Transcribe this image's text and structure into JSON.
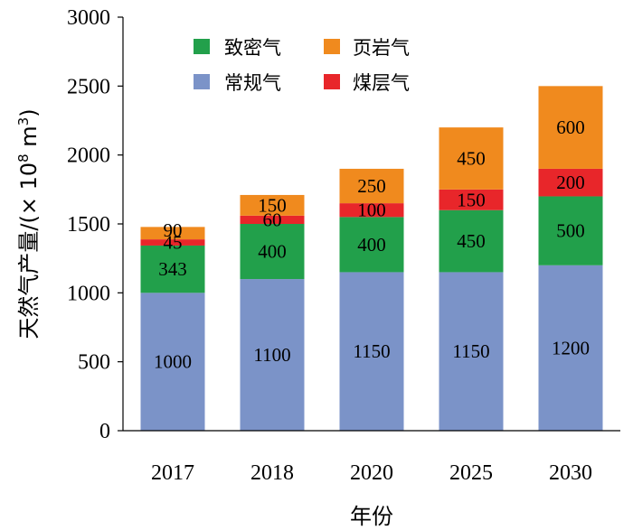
{
  "chart_data": {
    "type": "bar",
    "stacked": true,
    "title": "",
    "xlabel": "年份",
    "ylabel_main": "天然气产量/(× 10",
    "ylabel_sup": "8",
    "ylabel_unit": " m",
    "ylabel_unit_sup": "3",
    "ylabel_close": ")",
    "ylim": [
      0,
      3000
    ],
    "yticks": [
      "0",
      "500",
      "1000",
      "1500",
      "2000",
      "2500",
      "3000"
    ],
    "categories": [
      "2017",
      "2018",
      "2020",
      "2025",
      "2030"
    ],
    "series": [
      {
        "name": "常规气",
        "color": "#7b93c8",
        "values": [
          1000,
          1100,
          1150,
          1150,
          1200
        ],
        "labels": [
          "1000",
          "1100",
          "1150",
          "1150",
          "1200"
        ]
      },
      {
        "name": "致密气",
        "color": "#22a04b",
        "values": [
          343,
          400,
          400,
          450,
          500
        ],
        "labels": [
          "343",
          "400",
          "400",
          "450",
          "500"
        ]
      },
      {
        "name": "煤层气",
        "color": "#e8262a",
        "values": [
          45,
          60,
          100,
          150,
          200
        ],
        "labels": [
          "45",
          "60",
          "100",
          "150",
          "200"
        ]
      },
      {
        "name": "页岩气",
        "color": "#f08a1e",
        "values": [
          90,
          150,
          250,
          450,
          600
        ],
        "labels": [
          "90",
          "150",
          "250",
          "450",
          "600"
        ]
      }
    ],
    "legend": {
      "position": "top-left-inside",
      "order": [
        "致密气",
        "页岩气",
        "常规气",
        "煤层气"
      ]
    }
  }
}
